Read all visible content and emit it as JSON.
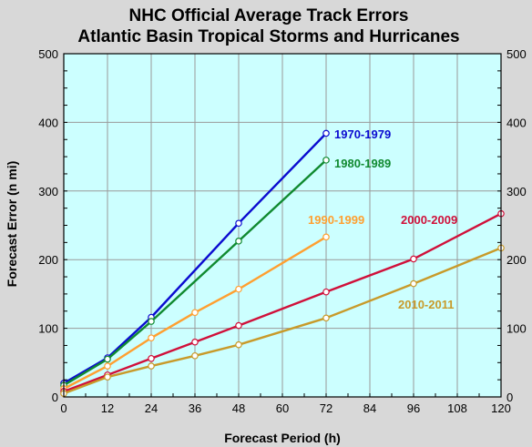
{
  "chart_data": {
    "type": "line",
    "title": "NHC Official Average Track Errors",
    "subtitle": "Atlantic Basin Tropical Storms and Hurricanes",
    "xlabel": "Forecast Period (h)",
    "ylabel": "Forecast Error (n mi)",
    "xlim": [
      0,
      120
    ],
    "ylim": [
      0,
      500
    ],
    "x_ticks": [
      0,
      12,
      24,
      36,
      48,
      60,
      72,
      84,
      96,
      108,
      120
    ],
    "y_ticks": [
      0,
      100,
      200,
      300,
      400,
      500
    ],
    "grid": true,
    "legend": "inline labels",
    "plot_background": "#ccffff",
    "series": [
      {
        "name": "1970-1979",
        "color": "#0b0bd0",
        "x": [
          0,
          12,
          24,
          48,
          72
        ],
        "values": [
          20,
          57,
          116,
          253,
          384
        ]
      },
      {
        "name": "1980-1989",
        "color": "#108a30",
        "x": [
          0,
          12,
          24,
          48,
          72
        ],
        "values": [
          17,
          55,
          110,
          227,
          345
        ]
      },
      {
        "name": "1990-1999",
        "color": "#ff9f30",
        "x": [
          0,
          12,
          24,
          36,
          48,
          72
        ],
        "values": [
          12,
          45,
          86,
          123,
          157,
          233
        ]
      },
      {
        "name": "2000-2009",
        "color": "#d0103a",
        "x": [
          0,
          12,
          24,
          36,
          48,
          72,
          96,
          120
        ],
        "values": [
          8,
          32,
          56,
          80,
          104,
          153,
          201,
          267
        ]
      },
      {
        "name": "2010-2011",
        "color": "#c89a2a",
        "x": [
          0,
          12,
          24,
          36,
          48,
          72,
          96,
          120
        ],
        "values": [
          5,
          29,
          45,
          60,
          76,
          115,
          165,
          217
        ]
      }
    ]
  }
}
